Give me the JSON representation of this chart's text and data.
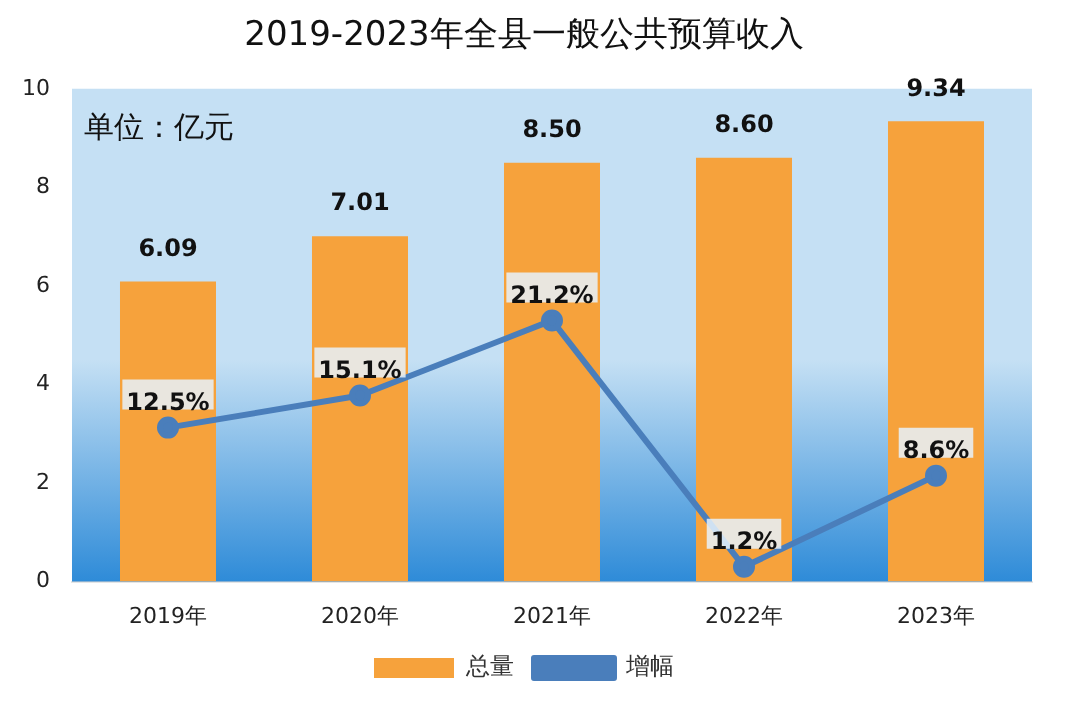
{
  "chart_data": {
    "type": "bar",
    "title": "2019-2023年全县一般公共预算收入",
    "categories": [
      "2019年",
      "2020年",
      "2021年",
      "2022年",
      "2023年"
    ],
    "series": [
      {
        "name": "总量",
        "color": "#f6a23c",
        "values": [
          6.09,
          7.01,
          8.5,
          8.6,
          9.34
        ],
        "value_labels": [
          "6.09",
          "7.01",
          "8.50",
          "8.60",
          "9.34"
        ]
      },
      {
        "name": "增幅",
        "type": "line",
        "axis": "y2",
        "color": "#4a7ebb",
        "values": [
          12.5,
          15.1,
          21.2,
          1.2,
          8.6
        ],
        "value_labels": [
          "12.5%",
          "15.1%",
          "21.2%",
          "1.2%",
          "8.6%"
        ]
      }
    ],
    "ylim": [
      0,
      10
    ],
    "yticks": [
      0,
      2,
      4,
      6,
      8,
      10
    ],
    "y2lim": [
      0,
      40
    ],
    "annotations": [
      "单位：亿元"
    ],
    "legend": "bottom",
    "marker": "circle",
    "grid": false
  }
}
